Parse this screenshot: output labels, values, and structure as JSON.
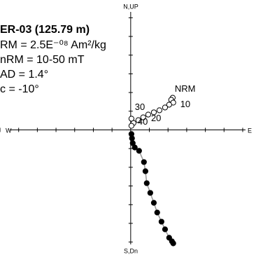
{
  "chart_data": {
    "type": "zijderveld",
    "info_title": "ER-03 (125.79 m)",
    "info_lines": [
      "RM = 2.5E⁻⁰⁸ Am²/kg",
      "nRM = 10-50 mT",
      "AD = 1.4°",
      "c = -10°"
    ],
    "axis_labels": {
      "top": "N,UP",
      "bottom": "S,Dn",
      "left": "W",
      "right": "E"
    },
    "xlim": [
      -7,
      6.3
    ],
    "ylim": [
      -6.2,
      6.5
    ],
    "xticks": [
      -7,
      -6,
      -5,
      -4,
      -3,
      -2,
      -1,
      1,
      2,
      3,
      4,
      5,
      6
    ],
    "yticks": [
      -6,
      -5,
      -4,
      -3,
      -2,
      -1,
      1,
      2,
      3,
      4,
      5,
      6
    ],
    "series": [
      {
        "filled": false,
        "color": "#000000",
        "x": [
          2.25,
          2.17,
          2.28,
          2.06,
          1.84,
          1.54,
          1.24,
          0.94,
          0.67,
          0.41,
          0.15,
          0.04,
          0.04
        ],
        "values": [
          1.72,
          1.61,
          1.46,
          1.35,
          1.2,
          1.05,
          0.94,
          0.82,
          0.67,
          0.52,
          0.37,
          0.22,
          0.6
        ],
        "labels": [
          "NRM",
          null,
          "10",
          null,
          null,
          null,
          "20",
          null,
          null,
          "30",
          null,
          "40",
          null
        ]
      },
      {
        "filled": true,
        "color": "#000000",
        "line_color": "#999999",
        "x": [
          0.04,
          0.07,
          0.11,
          0.22,
          0.45,
          0.71,
          0.79,
          0.86,
          1.05,
          1.24,
          1.42,
          1.65,
          1.84,
          2.06,
          2.21,
          2.28
        ],
        "values": [
          -0.22,
          -0.45,
          -0.71,
          -0.94,
          -1.12,
          -1.72,
          -2.21,
          -2.85,
          -3.37,
          -3.9,
          -4.42,
          -4.91,
          -5.32,
          -5.77,
          -5.96,
          -6.07
        ]
      }
    ]
  }
}
